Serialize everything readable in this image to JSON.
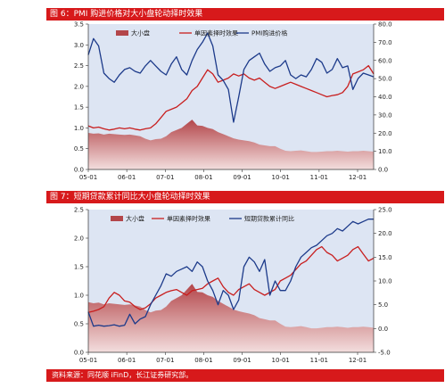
{
  "figure1": {
    "title": "图 6：PMI 购进价格对大小盘轮动择时效果"
  },
  "figure2": {
    "title": "图 7：短期贷款累计同比大小盘轮动择时效果"
  },
  "source": "资料来源：同花顺 iFinD，长江证券研究部。",
  "colors": {
    "area": "#b3464a",
    "red_line": "#c81e1e",
    "blue_line": "#1c3a8a",
    "plot_bg": "#dde5f3",
    "title_bar": "#d7191b"
  },
  "chart_data": [
    {
      "type": "line",
      "x_ticks": [
        "05-01",
        "06-01",
        "07-01",
        "08-01",
        "09-01",
        "10-01",
        "11-01",
        "12-01"
      ],
      "ylim_left": [
        0.0,
        3.5
      ],
      "yticks_left": [
        "0.0",
        "0.5",
        "1.0",
        "1.5",
        "2.0",
        "2.5",
        "3.0",
        "3.5"
      ],
      "ylim_right": [
        0.0,
        80.0
      ],
      "yticks_right": [
        "0.0",
        "10.0",
        "20.0",
        "30.0",
        "40.0",
        "50.0",
        "60.0",
        "70.0",
        "80.0"
      ],
      "legend_position": "top",
      "series": [
        {
          "name": "大小盘",
          "kind": "area",
          "axis": "left",
          "values": [
            0.88,
            0.86,
            0.87,
            0.84,
            0.86,
            0.85,
            0.84,
            0.83,
            0.84,
            0.82,
            0.8,
            0.74,
            0.7,
            0.73,
            0.74,
            0.8,
            0.9,
            0.95,
            1.0,
            1.1,
            1.2,
            1.06,
            1.05,
            1.0,
            0.97,
            0.9,
            0.85,
            0.8,
            0.75,
            0.72,
            0.7,
            0.68,
            0.65,
            0.6,
            0.58,
            0.56,
            0.56,
            0.5,
            0.45,
            0.44,
            0.45,
            0.46,
            0.44,
            0.42,
            0.42,
            0.43,
            0.44,
            0.44,
            0.45,
            0.44,
            0.43,
            0.44,
            0.44,
            0.45,
            0.44,
            0.43
          ]
        },
        {
          "name": "单因素择时效果",
          "kind": "line",
          "axis": "left",
          "values": [
            1.05,
            1.0,
            1.02,
            0.98,
            0.95,
            0.97,
            1.0,
            0.98,
            1.0,
            0.97,
            0.95,
            0.98,
            1.0,
            1.1,
            1.25,
            1.4,
            1.45,
            1.5,
            1.6,
            1.7,
            1.9,
            2.0,
            2.2,
            2.4,
            2.3,
            2.1,
            2.15,
            2.2,
            2.3,
            2.25,
            2.3,
            2.2,
            2.15,
            2.2,
            2.1,
            2.0,
            1.95,
            2.0,
            2.05,
            2.1,
            2.05,
            2.0,
            1.95,
            1.9,
            1.85,
            1.8,
            1.75,
            1.78,
            1.8,
            1.85,
            2.0,
            2.3,
            2.35,
            2.4,
            2.5,
            2.3
          ]
        },
        {
          "name": "PMI购进价格",
          "kind": "line",
          "axis": "right",
          "values": [
            63,
            72,
            68,
            53,
            50,
            48,
            52,
            55,
            56,
            54,
            53,
            57,
            60,
            57,
            54,
            52,
            58,
            62,
            55,
            52,
            60,
            66,
            70,
            75,
            68,
            52,
            49,
            44,
            26,
            40,
            55,
            60,
            62,
            64,
            58,
            54,
            56,
            57,
            60,
            52,
            50,
            52,
            51,
            55,
            61,
            59,
            53,
            55,
            61,
            56,
            57,
            44,
            50,
            53,
            52,
            51
          ]
        }
      ]
    },
    {
      "type": "line",
      "x_ticks": [
        "05-01",
        "06-01",
        "07-01",
        "08-01",
        "09-01",
        "10-01",
        "11-01",
        "12-01"
      ],
      "ylim_left": [
        0.0,
        2.5
      ],
      "yticks_left": [
        "0.0",
        "0.5",
        "1.0",
        "1.5",
        "2.0",
        "2.5"
      ],
      "ylim_right": [
        -5.0,
        25.0
      ],
      "yticks_right": [
        "-5.0",
        "0.0",
        "5.0",
        "10.0",
        "15.0",
        "20.0",
        "25.0"
      ],
      "legend_position": "top",
      "series": [
        {
          "name": "大小盘",
          "kind": "area",
          "axis": "left",
          "values": [
            0.88,
            0.86,
            0.87,
            0.84,
            0.86,
            0.85,
            0.84,
            0.83,
            0.84,
            0.82,
            0.8,
            0.74,
            0.7,
            0.73,
            0.74,
            0.8,
            0.9,
            0.95,
            1.0,
            1.1,
            1.2,
            1.06,
            1.05,
            1.0,
            0.97,
            0.9,
            0.85,
            0.8,
            0.75,
            0.72,
            0.7,
            0.68,
            0.65,
            0.6,
            0.58,
            0.56,
            0.56,
            0.5,
            0.45,
            0.44,
            0.45,
            0.46,
            0.44,
            0.42,
            0.42,
            0.43,
            0.44,
            0.44,
            0.45,
            0.44,
            0.43,
            0.44,
            0.44,
            0.45,
            0.44,
            0.43
          ]
        },
        {
          "name": "单因素择时效果",
          "kind": "line",
          "axis": "left",
          "values": [
            0.7,
            0.72,
            0.75,
            0.8,
            0.95,
            1.05,
            1.0,
            0.9,
            0.88,
            0.8,
            0.75,
            0.78,
            0.85,
            0.95,
            1.0,
            1.05,
            1.08,
            1.1,
            1.05,
            1.0,
            1.08,
            1.1,
            1.12,
            1.2,
            1.25,
            1.3,
            1.15,
            1.05,
            1.0,
            1.1,
            1.15,
            1.2,
            1.1,
            1.05,
            1.0,
            1.05,
            1.1,
            1.25,
            1.3,
            1.35,
            1.45,
            1.55,
            1.6,
            1.7,
            1.8,
            1.85,
            1.75,
            1.7,
            1.6,
            1.65,
            1.7,
            1.8,
            1.85,
            1.72,
            1.6,
            1.65
          ]
        },
        {
          "name": "短期贷款累计同比",
          "kind": "line",
          "axis": "right",
          "values": [
            3.5,
            0.5,
            0.7,
            0.5,
            0.6,
            0.8,
            0.5,
            0.7,
            3.0,
            1.0,
            2.0,
            2.5,
            5.0,
            7.0,
            9.0,
            11.5,
            11.0,
            12.0,
            12.5,
            13.0,
            12.0,
            14.0,
            13.0,
            10.0,
            8.0,
            5.0,
            8.0,
            7.0,
            4.0,
            6.0,
            13.0,
            15.0,
            14.0,
            12.0,
            14.5,
            7.0,
            10.0,
            8.0,
            8.0,
            10.0,
            13.0,
            15.0,
            16.0,
            17.0,
            17.5,
            18.5,
            19.5,
            20.0,
            21.0,
            20.5,
            21.5,
            22.5,
            22.0,
            22.5,
            23.0,
            23.0
          ]
        }
      ]
    }
  ]
}
